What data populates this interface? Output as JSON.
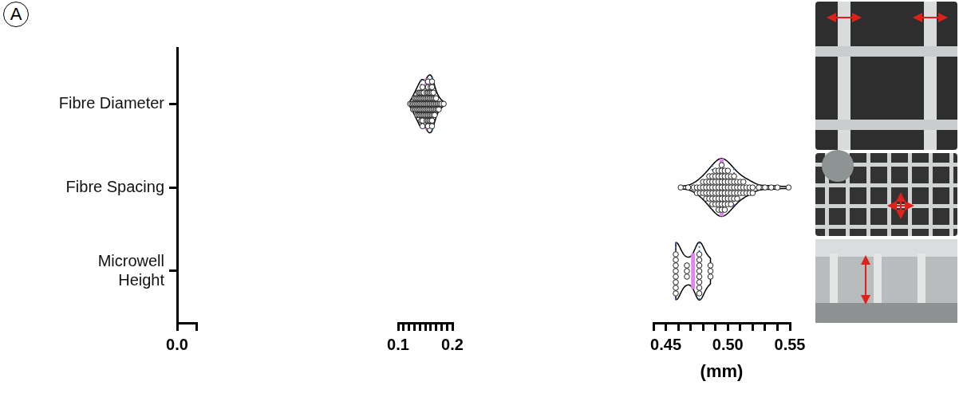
{
  "chart_data": {
    "type": "violin",
    "panel": "A",
    "categories": [
      "Fibre Diameter",
      "Fibre Spacing",
      [
        "Microwell",
        "Height"
      ]
    ],
    "values": [
      [
        0.122,
        0.125,
        0.1275,
        0.1275,
        0.13,
        0.13,
        0.13,
        0.1325,
        0.1325,
        0.1325,
        0.135,
        0.135,
        0.135,
        0.135,
        0.1375,
        0.1375,
        0.1375,
        0.1375,
        0.1375,
        0.14,
        0.14,
        0.14,
        0.14,
        0.14,
        0.1425,
        0.1425,
        0.1425,
        0.1425,
        0.1425,
        0.1425,
        0.145,
        0.145,
        0.145,
        0.145,
        0.145,
        0.145,
        0.145,
        0.145,
        0.1475,
        0.1475,
        0.1475,
        0.1475,
        0.1475,
        0.15,
        0.15,
        0.15,
        0.15,
        0.1525,
        0.1525,
        0.1525,
        0.1525,
        0.1525,
        0.1525,
        0.155,
        0.155,
        0.155,
        0.155,
        0.155,
        0.155,
        0.155,
        0.155,
        0.155,
        0.1575,
        0.1575,
        0.1575,
        0.1575,
        0.1575,
        0.1575,
        0.16,
        0.16,
        0.16,
        0.16,
        0.16,
        0.16,
        0.16,
        0.1625,
        0.1625,
        0.1625,
        0.1625,
        0.1625,
        0.1625,
        0.1625,
        0.1625,
        0.1625,
        0.165,
        0.165,
        0.165,
        0.165,
        0.165,
        0.1675,
        0.1675,
        0.1675,
        0.1675,
        0.17,
        0.17,
        0.17,
        0.1725,
        0.1725,
        0.175,
        0.175,
        0.1775,
        0.18,
        0.184
      ],
      [
        0.462,
        0.468,
        0.4725,
        0.475,
        0.475,
        0.4775,
        0.4775,
        0.48,
        0.48,
        0.48,
        0.4825,
        0.4825,
        0.4825,
        0.4825,
        0.485,
        0.485,
        0.485,
        0.485,
        0.485,
        0.4875,
        0.4875,
        0.4875,
        0.4875,
        0.4875,
        0.4875,
        0.49,
        0.49,
        0.49,
        0.49,
        0.49,
        0.49,
        0.49,
        0.4925,
        0.4925,
        0.4925,
        0.4925,
        0.4925,
        0.4925,
        0.4925,
        0.4925,
        0.495,
        0.495,
        0.495,
        0.495,
        0.495,
        0.495,
        0.495,
        0.495,
        0.495,
        0.4975,
        0.4975,
        0.4975,
        0.4975,
        0.4975,
        0.4975,
        0.4975,
        0.4975,
        0.5,
        0.5,
        0.5,
        0.5,
        0.5,
        0.5,
        0.5,
        0.5025,
        0.5025,
        0.5025,
        0.5025,
        0.5025,
        0.5025,
        0.505,
        0.505,
        0.505,
        0.505,
        0.505,
        0.5075,
        0.5075,
        0.5075,
        0.5075,
        0.51,
        0.51,
        0.51,
        0.5125,
        0.5125,
        0.5125,
        0.515,
        0.515,
        0.5175,
        0.5175,
        0.52,
        0.52,
        0.525,
        0.53,
        0.535,
        0.54,
        0.549
      ],
      [
        0.458,
        0.458,
        0.458,
        0.458,
        0.458,
        0.458,
        0.458,
        0.458,
        0.467,
        0.467,
        0.467,
        0.477,
        0.477,
        0.477,
        0.477,
        0.477,
        0.477,
        0.477,
        0.477,
        0.486,
        0.486,
        0.486
      ]
    ],
    "medians": [
      0.1525,
      0.495,
      0.472
    ],
    "quartiles": [
      [
        0.1425,
        0.1625
      ],
      [
        0.4875,
        0.505
      ],
      [
        0.458,
        0.477
      ]
    ],
    "x_label": "(mm)",
    "x_segments": [
      {
        "xlim": [
          0,
          0.01
        ],
        "xticks": [
          {
            "value": 0,
            "label": "0.0"
          }
        ],
        "minor_xticks": [
          0.01
        ]
      },
      {
        "xlim": [
          0.1,
          0.2
        ],
        "xticks": [
          0.1,
          0.2
        ],
        "minor_xticks": [
          0.11,
          0.12,
          0.13,
          0.14,
          0.15,
          0.16,
          0.17,
          0.18,
          0.19
        ]
      },
      {
        "xlim": [
          0.44,
          0.55
        ],
        "xticks": [
          0.45,
          {
            "value": 0.5,
            "label": "0.50"
          },
          0.55
        ],
        "minor_xticks": [
          0.44,
          0.46,
          0.47,
          0.48,
          0.49,
          0.51,
          0.52,
          0.53,
          0.54
        ]
      }
    ],
    "grid": false
  }
}
